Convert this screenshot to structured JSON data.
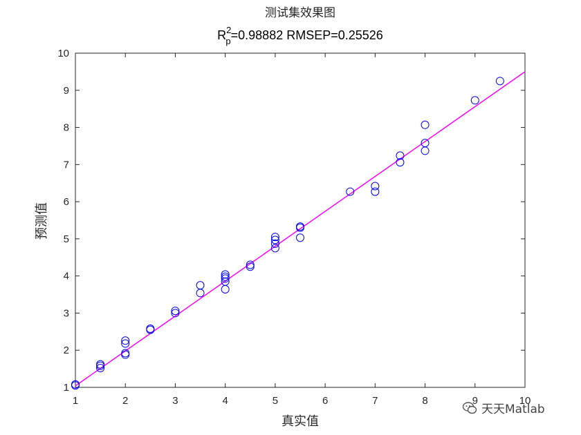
{
  "chart_data": {
    "type": "scatter",
    "title_line1": "测试集效果图",
    "title_r": "R",
    "title_sup": "2",
    "title_sub": "p",
    "title_rest": "=0.98882  RMSEP=0.25526",
    "xlabel": "真实值",
    "ylabel": "预测值",
    "xlim": [
      1,
      10
    ],
    "ylim": [
      1,
      10
    ],
    "xticks": [
      "1",
      "2",
      "3",
      "4",
      "5",
      "6",
      "7",
      "8",
      "9",
      "10"
    ],
    "yticks": [
      "1",
      "2",
      "3",
      "4",
      "5",
      "6",
      "7",
      "8",
      "9",
      "10"
    ],
    "grid": false,
    "marker": "open-circle",
    "marker_color": "#0000ff",
    "fit_line_color": "#ff00ff",
    "fit_line": {
      "slope": 0.94,
      "intercept": 0.1
    },
    "series": [
      {
        "x": [
          1,
          1,
          1.5,
          1.5,
          1.5,
          2,
          2,
          2,
          2,
          2.5,
          2.5,
          3,
          3,
          3.5,
          3.5,
          4,
          4,
          4,
          4,
          4,
          4.5,
          4.5,
          5,
          5,
          5,
          5,
          5.5,
          5.5,
          5.5,
          6.5,
          7,
          7,
          7.5,
          7.5,
          8,
          8,
          8,
          9,
          9.5
        ],
        "y": [
          1.05,
          1.08,
          1.52,
          1.58,
          1.62,
          1.88,
          1.92,
          2.18,
          2.26,
          2.55,
          2.58,
          3.0,
          3.06,
          3.54,
          3.75,
          3.64,
          3.85,
          3.93,
          3.98,
          4.04,
          4.25,
          4.3,
          4.75,
          4.87,
          4.97,
          5.05,
          5.03,
          5.3,
          5.33,
          6.27,
          6.27,
          6.42,
          7.06,
          7.24,
          7.37,
          7.58,
          8.07,
          8.73,
          9.25
        ]
      }
    ]
  },
  "watermark": {
    "text": "天天Matlab",
    "icon": "wechat-icon"
  }
}
